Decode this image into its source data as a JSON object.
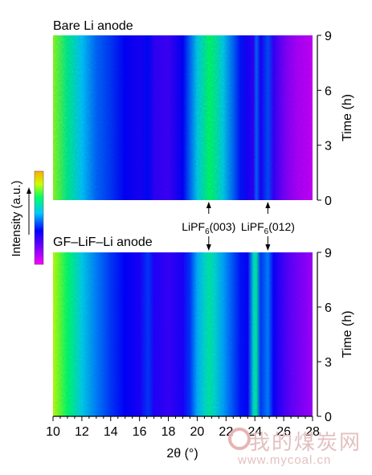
{
  "chart_data": {
    "type": "heatmap",
    "panels": [
      {
        "title": "Bare Li anode",
        "ylabel": "Time (h)",
        "ylim": [
          0,
          9
        ],
        "yticks": [
          "0",
          "3",
          "6",
          "9"
        ]
      },
      {
        "title": "GF–LiF–Li anode",
        "ylabel": "Time (h)",
        "ylim": [
          0,
          9
        ],
        "yticks": [
          "0",
          "3",
          "6",
          "9"
        ]
      }
    ],
    "xlabel": "2θ (°)",
    "xlim": [
      10,
      28
    ],
    "xticks": [
      "10",
      "12",
      "14",
      "16",
      "18",
      "20",
      "22",
      "24",
      "26",
      "28"
    ],
    "colorbar_label": "Intensity (a.u.)",
    "colorscale": [
      "#ff00ff",
      "#7a00ff",
      "#0000ff",
      "#00c8ff",
      "#00ff66",
      "#ccff00",
      "#ffaa00"
    ],
    "annotations": [
      {
        "label_base": "LiPF",
        "label_sub": "6",
        "label_tail": "(003)",
        "two_theta": 20.8
      },
      {
        "label_base": "LiPF",
        "label_sub": "6",
        "label_tail": "(012)",
        "two_theta": 24.9
      }
    ],
    "profile": {
      "two_theta": [
        10,
        11,
        12,
        13,
        14,
        15,
        16,
        16.6,
        17,
        18,
        19,
        19.5,
        20,
        20.5,
        20.8,
        21.2,
        21.8,
        22.5,
        23,
        23.5,
        23.9,
        24.1,
        24.4,
        24.9,
        25.3,
        26,
        26.5,
        27,
        28
      ],
      "bare_intensity": [
        0.78,
        0.62,
        0.5,
        0.42,
        0.38,
        0.33,
        0.3,
        0.34,
        0.27,
        0.25,
        0.33,
        0.42,
        0.52,
        0.6,
        0.66,
        0.62,
        0.52,
        0.42,
        0.35,
        0.3,
        0.27,
        0.42,
        0.3,
        0.4,
        0.26,
        0.17,
        0.13,
        0.1,
        0.07
      ],
      "gf_intensity": [
        0.82,
        0.66,
        0.52,
        0.44,
        0.38,
        0.33,
        0.3,
        0.38,
        0.29,
        0.26,
        0.3,
        0.38,
        0.48,
        0.55,
        0.6,
        0.55,
        0.47,
        0.4,
        0.35,
        0.32,
        0.55,
        0.6,
        0.38,
        0.44,
        0.32,
        0.24,
        0.2,
        0.17,
        0.12
      ]
    }
  },
  "watermark": {
    "text_cn": "我的煤炭网",
    "url": "www.mycoal.cn"
  }
}
